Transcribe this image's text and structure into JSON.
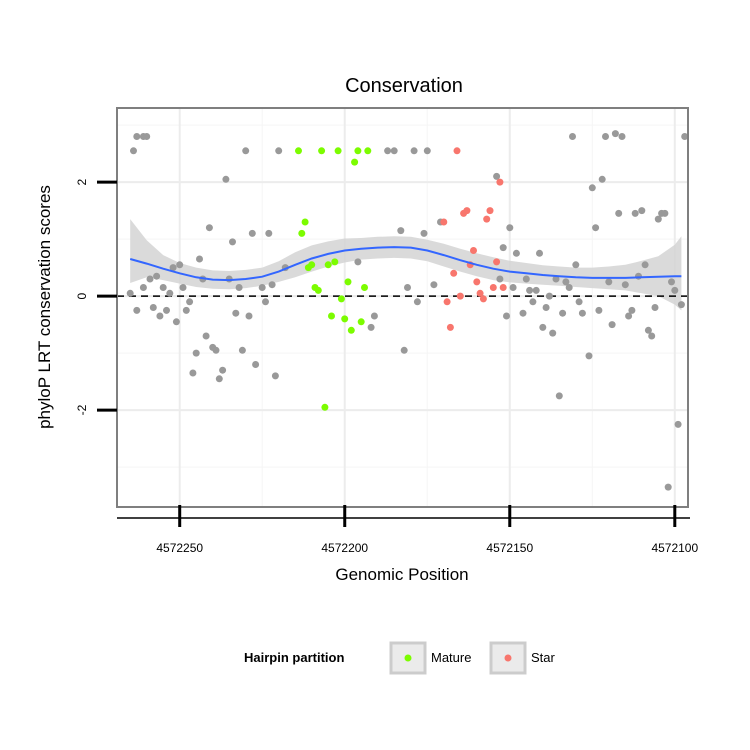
{
  "chart_data": {
    "type": "scatter",
    "title": "Conservation",
    "xlabel": "Genomic Position",
    "ylabel": "phyloP LRT conservation scores",
    "x_reversed": true,
    "xlim": [
      4572269,
      4572096
    ],
    "ylim": [
      -3.7,
      3.3
    ],
    "x_ticks": [
      4572250,
      4572200,
      4572150,
      4572100
    ],
    "x_tick_labels": [
      "4572250",
      "4572200",
      "4572150",
      "4572100"
    ],
    "y_ticks": [
      -2,
      0,
      2
    ],
    "y_tick_labels": [
      "-2",
      "0",
      "2"
    ],
    "reference_line": {
      "y": 0,
      "style": "dashed"
    },
    "grid": true,
    "legend": {
      "title": "Hairpin partition",
      "placement": "bottom",
      "entries": [
        {
          "name": "Mature",
          "color": "#7cfc00"
        },
        {
          "name": "Star",
          "color": "#f8766d"
        }
      ]
    },
    "colors": {
      "other": "#999999",
      "Mature": "#7cfc00",
      "Star": "#f8766d",
      "smooth_line": "#3366ff",
      "ribbon": "#d4d4d4",
      "panel_border": "#7f7f7f"
    },
    "series": [
      {
        "name": "",
        "color": "#999999",
        "points": [
          [
            4572264,
            2.55
          ],
          [
            4572263,
            2.8
          ],
          [
            4572261,
            2.8
          ],
          [
            4572260,
            2.8
          ],
          [
            4572265,
            0.05
          ],
          [
            4572263,
            -0.25
          ],
          [
            4572261,
            0.15
          ],
          [
            4572259,
            0.3
          ],
          [
            4572258,
            -0.2
          ],
          [
            4572257,
            0.35
          ],
          [
            4572256,
            -0.35
          ],
          [
            4572255,
            0.15
          ],
          [
            4572254,
            -0.25
          ],
          [
            4572253,
            0.05
          ],
          [
            4572252,
            0.5
          ],
          [
            4572251,
            -0.45
          ],
          [
            4572250,
            0.55
          ],
          [
            4572249,
            0.15
          ],
          [
            4572248,
            -0.25
          ],
          [
            4572247,
            -0.1
          ],
          [
            4572246,
            -1.35
          ],
          [
            4572245,
            -1.0
          ],
          [
            4572244,
            0.65
          ],
          [
            4572243,
            0.3
          ],
          [
            4572242,
            -0.7
          ],
          [
            4572241,
            1.2
          ],
          [
            4572240,
            -0.9
          ],
          [
            4572239,
            -0.95
          ],
          [
            4572238,
            -1.45
          ],
          [
            4572237,
            -1.3
          ],
          [
            4572236,
            2.05
          ],
          [
            4572235,
            0.3
          ],
          [
            4572234,
            0.95
          ],
          [
            4572233,
            -0.3
          ],
          [
            4572232,
            0.15
          ],
          [
            4572231,
            -0.95
          ],
          [
            4572230,
            2.55
          ],
          [
            4572229,
            -0.35
          ],
          [
            4572228,
            1.1
          ],
          [
            4572227,
            -1.2
          ],
          [
            4572225,
            0.15
          ],
          [
            4572224,
            -0.1
          ],
          [
            4572223,
            1.1
          ],
          [
            4572222,
            0.2
          ],
          [
            4572221,
            -1.4
          ],
          [
            4572220,
            2.55
          ],
          [
            4572218,
            0.5
          ],
          [
            4572196,
            0.6
          ],
          [
            4572192,
            -0.55
          ],
          [
            4572191,
            -0.35
          ],
          [
            4572187,
            2.55
          ],
          [
            4572185,
            2.55
          ],
          [
            4572183,
            1.15
          ],
          [
            4572182,
            -0.95
          ],
          [
            4572181,
            0.15
          ],
          [
            4572179,
            2.55
          ],
          [
            4572178,
            -0.1
          ],
          [
            4572176,
            1.1
          ],
          [
            4572175,
            2.55
          ],
          [
            4572173,
            0.2
          ],
          [
            4572171,
            1.3
          ],
          [
            4572136,
            0.3
          ],
          [
            4572134,
            -0.3
          ],
          [
            4572133,
            0.25
          ],
          [
            4572132,
            0.15
          ],
          [
            4572130,
            0.55
          ],
          [
            4572129,
            -0.1
          ],
          [
            4572128,
            -0.3
          ],
          [
            4572126,
            -1.05
          ],
          [
            4572125,
            1.9
          ],
          [
            4572124,
            1.2
          ],
          [
            4572123,
            -0.25
          ],
          [
            4572122,
            2.05
          ],
          [
            4572121,
            2.8
          ],
          [
            4572118,
            2.85
          ],
          [
            4572117,
            1.45
          ],
          [
            4572116,
            2.8
          ],
          [
            4572115,
            0.2
          ],
          [
            4572113,
            -0.25
          ],
          [
            4572112,
            1.45
          ],
          [
            4572110,
            1.5
          ],
          [
            4572109,
            0.55
          ],
          [
            4572108,
            -0.6
          ],
          [
            4572107,
            -0.7
          ],
          [
            4572106,
            -0.2
          ],
          [
            4572105,
            1.35
          ],
          [
            4572104,
            1.45
          ],
          [
            4572103,
            1.45
          ],
          [
            4572102,
            -3.35
          ],
          [
            4572101,
            0.25
          ],
          [
            4572100,
            0.1
          ],
          [
            4572099,
            -2.25
          ],
          [
            4572098,
            -0.15
          ],
          [
            4572152,
            0.85
          ],
          [
            4572150,
            1.2
          ],
          [
            4572148,
            0.75
          ],
          [
            4572146,
            -0.3
          ],
          [
            4572145,
            0.3
          ],
          [
            4572144,
            0.1
          ],
          [
            4572143,
            -0.1
          ],
          [
            4572141,
            0.75
          ],
          [
            4572140,
            -0.55
          ],
          [
            4572139,
            -0.2
          ],
          [
            4572138,
            0.0
          ],
          [
            4572137,
            -0.65
          ],
          [
            4572135,
            -1.75
          ],
          [
            4572131,
            2.8
          ],
          [
            4572120,
            0.25
          ],
          [
            4572119,
            -0.5
          ],
          [
            4572114,
            -0.35
          ],
          [
            4572111,
            0.35
          ],
          [
            4572097,
            2.8
          ],
          [
            4572153,
            0.3
          ],
          [
            4572151,
            -0.35
          ],
          [
            4572149,
            0.15
          ],
          [
            4572154,
            2.1
          ],
          [
            4572142,
            0.1
          ]
        ]
      },
      {
        "name": "Mature",
        "color": "#7cfc00",
        "points": [
          [
            4572214,
            2.55
          ],
          [
            4572213,
            1.1
          ],
          [
            4572212,
            1.3
          ],
          [
            4572211,
            0.5
          ],
          [
            4572210,
            0.55
          ],
          [
            4572209,
            0.15
          ],
          [
            4572208,
            0.1
          ],
          [
            4572207,
            2.55
          ],
          [
            4572206,
            -1.95
          ],
          [
            4572205,
            0.55
          ],
          [
            4572204,
            -0.35
          ],
          [
            4572203,
            0.6
          ],
          [
            4572202,
            2.55
          ],
          [
            4572201,
            -0.05
          ],
          [
            4572200,
            -0.4
          ],
          [
            4572199,
            0.25
          ],
          [
            4572198,
            -0.6
          ],
          [
            4572197,
            2.35
          ],
          [
            4572196,
            2.55
          ],
          [
            4572195,
            -0.45
          ],
          [
            4572194,
            0.15
          ],
          [
            4572193,
            2.55
          ]
        ]
      },
      {
        "name": "Star",
        "color": "#f8766d",
        "points": [
          [
            4572170,
            1.3
          ],
          [
            4572169,
            -0.1
          ],
          [
            4572168,
            -0.55
          ],
          [
            4572167,
            0.4
          ],
          [
            4572166,
            2.55
          ],
          [
            4572165,
            0.0
          ],
          [
            4572164,
            1.45
          ],
          [
            4572163,
            1.5
          ],
          [
            4572162,
            0.55
          ],
          [
            4572161,
            0.8
          ],
          [
            4572160,
            0.25
          ],
          [
            4572159,
            0.05
          ],
          [
            4572158,
            -0.05
          ],
          [
            4572157,
            1.35
          ],
          [
            4572156,
            1.5
          ],
          [
            4572155,
            0.15
          ],
          [
            4572154,
            0.6
          ],
          [
            4572153,
            2.0
          ],
          [
            4572152,
            0.15
          ]
        ]
      }
    ],
    "smooth": {
      "x": [
        4572265,
        4572260,
        4572255,
        4572250,
        4572245,
        4572240,
        4572235,
        4572230,
        4572225,
        4572220,
        4572215,
        4572210,
        4572205,
        4572200,
        4572195,
        4572190,
        4572185,
        4572180,
        4572175,
        4572170,
        4572165,
        4572160,
        4572155,
        4572150,
        4572145,
        4572140,
        4572135,
        4572130,
        4572125,
        4572120,
        4572115,
        4572110,
        4572105,
        4572100,
        4572098
      ],
      "y": [
        0.65,
        0.57,
        0.48,
        0.4,
        0.33,
        0.29,
        0.28,
        0.3,
        0.34,
        0.43,
        0.55,
        0.66,
        0.74,
        0.8,
        0.83,
        0.85,
        0.86,
        0.85,
        0.8,
        0.72,
        0.63,
        0.55,
        0.48,
        0.43,
        0.4,
        0.37,
        0.35,
        0.33,
        0.32,
        0.32,
        0.32,
        0.33,
        0.34,
        0.35,
        0.35
      ],
      "lower": [
        0.23,
        0.33,
        0.28,
        0.22,
        0.16,
        0.13,
        0.12,
        0.14,
        0.18,
        0.25,
        0.33,
        0.43,
        0.52,
        0.59,
        0.64,
        0.66,
        0.67,
        0.66,
        0.61,
        0.52,
        0.43,
        0.35,
        0.28,
        0.24,
        0.22,
        0.2,
        0.18,
        0.16,
        0.14,
        0.12,
        0.1,
        0.05,
        0.0,
        -0.15,
        -0.25
      ],
      "upper": [
        1.35,
        0.98,
        0.72,
        0.58,
        0.5,
        0.45,
        0.44,
        0.46,
        0.5,
        0.61,
        0.77,
        0.89,
        0.96,
        1.01,
        1.02,
        1.04,
        1.05,
        1.04,
        0.99,
        0.92,
        0.83,
        0.75,
        0.68,
        0.62,
        0.58,
        0.54,
        0.52,
        0.5,
        0.5,
        0.52,
        0.55,
        0.62,
        0.7,
        0.9,
        1.05
      ]
    }
  }
}
